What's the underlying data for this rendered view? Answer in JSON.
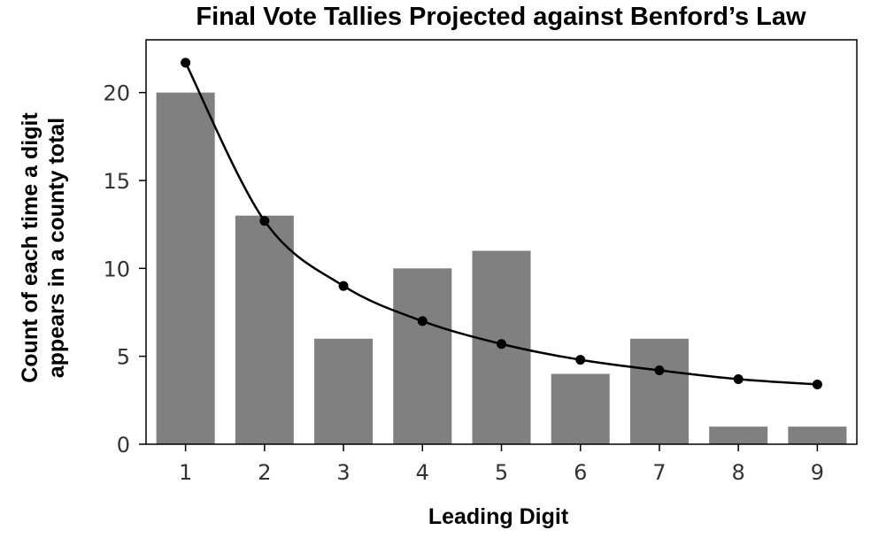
{
  "chart_data": {
    "type": "bar",
    "title": "Final Vote Tallies Projected against Benford’s Law",
    "xlabel": "Leading Digit",
    "ylabel_lines": [
      "Count of each time a digit",
      "appears in a county total"
    ],
    "categories": [
      "1",
      "2",
      "3",
      "4",
      "5",
      "6",
      "7",
      "8",
      "9"
    ],
    "ylim": [
      0,
      23
    ],
    "yticks": [
      0,
      5,
      10,
      15,
      20
    ],
    "grid": false,
    "legend": "none",
    "series": [
      {
        "type": "bar",
        "values": [
          20,
          13,
          6,
          10,
          11,
          4,
          6,
          1,
          1
        ],
        "color": "#808080"
      },
      {
        "type": "line",
        "values": [
          21.7,
          12.7,
          9.0,
          7.0,
          5.7,
          4.8,
          4.2,
          3.7,
          3.4
        ],
        "color": "#000000"
      }
    ]
  }
}
